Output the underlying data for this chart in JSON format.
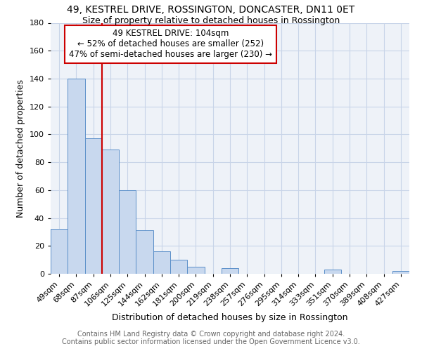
{
  "title": "49, KESTREL DRIVE, ROSSINGTON, DONCASTER, DN11 0ET",
  "subtitle": "Size of property relative to detached houses in Rossington",
  "xlabel": "Distribution of detached houses by size in Rossington",
  "ylabel": "Number of detached properties",
  "categories": [
    "49sqm",
    "68sqm",
    "87sqm",
    "106sqm",
    "125sqm",
    "144sqm",
    "162sqm",
    "181sqm",
    "200sqm",
    "219sqm",
    "238sqm",
    "257sqm",
    "276sqm",
    "295sqm",
    "314sqm",
    "333sqm",
    "351sqm",
    "370sqm",
    "389sqm",
    "408sqm",
    "427sqm"
  ],
  "values": [
    32,
    140,
    97,
    89,
    60,
    31,
    16,
    10,
    5,
    0,
    4,
    0,
    0,
    0,
    0,
    0,
    3,
    0,
    0,
    0,
    2
  ],
  "bar_color": "#c8d8ee",
  "bar_edge_color": "#5b8fc9",
  "vline_x_index": 3,
  "vline_color": "#cc0000",
  "annotation_line1": "49 KESTREL DRIVE: 104sqm",
  "annotation_line2": "← 52% of detached houses are smaller (252)",
  "annotation_line3": "47% of semi-detached houses are larger (230) →",
  "box_edge_color": "#cc0000",
  "ylim": [
    0,
    180
  ],
  "yticks": [
    0,
    20,
    40,
    60,
    80,
    100,
    120,
    140,
    160,
    180
  ],
  "grid_color": "#c8d4e8",
  "bg_color": "#eef2f8",
  "title_fontsize": 10,
  "subtitle_fontsize": 9,
  "axis_label_fontsize": 9,
  "tick_fontsize": 8,
  "annotation_fontsize": 8.5,
  "footer_fontsize": 7,
  "footer_line1": "Contains HM Land Registry data © Crown copyright and database right 2024.",
  "footer_line2": "Contains public sector information licensed under the Open Government Licence v3.0."
}
